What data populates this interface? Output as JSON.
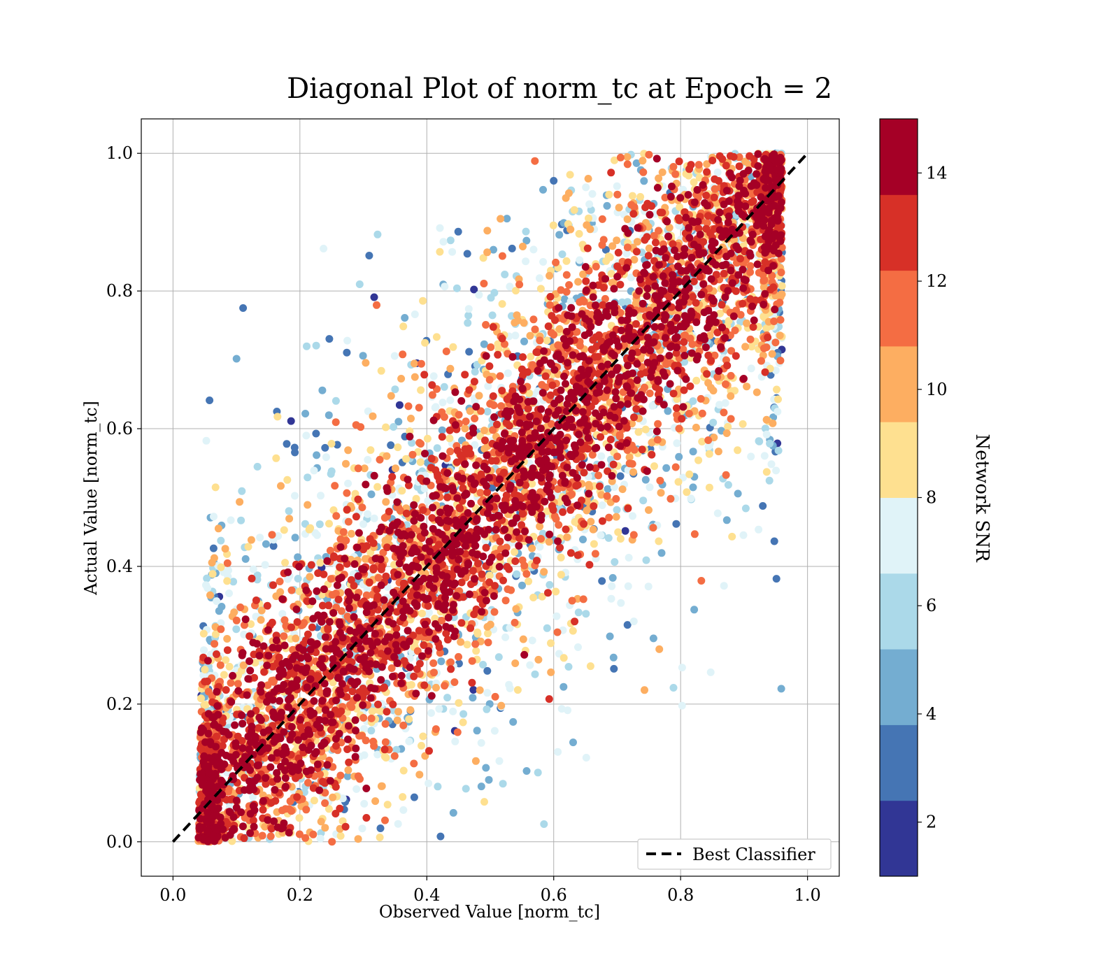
{
  "chart_data": {
    "type": "scatter",
    "title": "Diagonal Plot of norm_tc at Epoch = 2",
    "xlabel": "Observed Value [norm_tc]",
    "ylabel": "Actual Value [norm_tc]",
    "xlim": [
      -0.05,
      1.05
    ],
    "ylim": [
      -0.05,
      1.05
    ],
    "x_ticks": [
      "0.0",
      "0.2",
      "0.4",
      "0.6",
      "0.8",
      "1.0"
    ],
    "y_ticks": [
      "0.0",
      "0.2",
      "0.4",
      "0.6",
      "0.8",
      "1.0"
    ],
    "grid": true,
    "legend": {
      "position": "lower-right",
      "entries": [
        "Best Classifier"
      ]
    },
    "reference_line": {
      "name": "Best Classifier",
      "style": "dashed",
      "color": "#000000",
      "x": [
        0,
        1
      ],
      "y": [
        0,
        1
      ]
    },
    "colorbar": {
      "label": "Network SNR",
      "range": [
        1,
        15
      ],
      "ticks": [
        "2",
        "4",
        "6",
        "8",
        "10",
        "12",
        "14"
      ],
      "colors": [
        "#313695",
        "#4575b4",
        "#74add1",
        "#abd9e9",
        "#e0f3f8",
        "#fee090",
        "#fdae61",
        "#f46d43",
        "#d73027",
        "#a50026"
      ]
    },
    "distribution": {
      "description_only": false,
      "x_range_observed": [
        0.04,
        0.96
      ],
      "y_range": [
        0.0,
        1.0
      ],
      "high_snr_band_halfwidth": 0.12,
      "low_snr_spread": 0.4
    }
  }
}
